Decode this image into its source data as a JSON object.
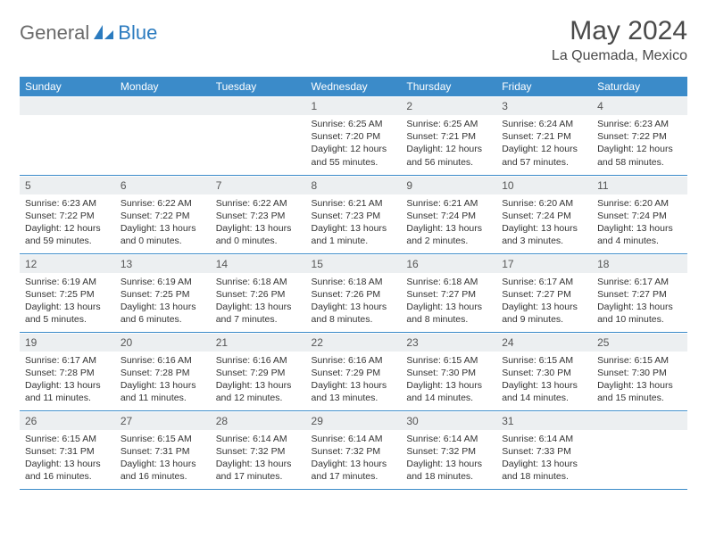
{
  "logo": {
    "part1": "General",
    "part2": "Blue"
  },
  "title": "May 2024",
  "location": "La Quemada, Mexico",
  "colors": {
    "header_bg": "#3b8bc9",
    "header_text": "#ffffff",
    "daynum_bg": "#eceff1",
    "border": "#3b8bc9",
    "logo_gray": "#6a6a6a",
    "logo_blue": "#2b7bbf"
  },
  "weekdays": [
    "Sunday",
    "Monday",
    "Tuesday",
    "Wednesday",
    "Thursday",
    "Friday",
    "Saturday"
  ],
  "weeks": [
    [
      {
        "empty": true
      },
      {
        "empty": true
      },
      {
        "empty": true
      },
      {
        "num": "1",
        "sunrise": "Sunrise: 6:25 AM",
        "sunset": "Sunset: 7:20 PM",
        "daylight": "Daylight: 12 hours and 55 minutes."
      },
      {
        "num": "2",
        "sunrise": "Sunrise: 6:25 AM",
        "sunset": "Sunset: 7:21 PM",
        "daylight": "Daylight: 12 hours and 56 minutes."
      },
      {
        "num": "3",
        "sunrise": "Sunrise: 6:24 AM",
        "sunset": "Sunset: 7:21 PM",
        "daylight": "Daylight: 12 hours and 57 minutes."
      },
      {
        "num": "4",
        "sunrise": "Sunrise: 6:23 AM",
        "sunset": "Sunset: 7:22 PM",
        "daylight": "Daylight: 12 hours and 58 minutes."
      }
    ],
    [
      {
        "num": "5",
        "sunrise": "Sunrise: 6:23 AM",
        "sunset": "Sunset: 7:22 PM",
        "daylight": "Daylight: 12 hours and 59 minutes."
      },
      {
        "num": "6",
        "sunrise": "Sunrise: 6:22 AM",
        "sunset": "Sunset: 7:22 PM",
        "daylight": "Daylight: 13 hours and 0 minutes."
      },
      {
        "num": "7",
        "sunrise": "Sunrise: 6:22 AM",
        "sunset": "Sunset: 7:23 PM",
        "daylight": "Daylight: 13 hours and 0 minutes."
      },
      {
        "num": "8",
        "sunrise": "Sunrise: 6:21 AM",
        "sunset": "Sunset: 7:23 PM",
        "daylight": "Daylight: 13 hours and 1 minute."
      },
      {
        "num": "9",
        "sunrise": "Sunrise: 6:21 AM",
        "sunset": "Sunset: 7:24 PM",
        "daylight": "Daylight: 13 hours and 2 minutes."
      },
      {
        "num": "10",
        "sunrise": "Sunrise: 6:20 AM",
        "sunset": "Sunset: 7:24 PM",
        "daylight": "Daylight: 13 hours and 3 minutes."
      },
      {
        "num": "11",
        "sunrise": "Sunrise: 6:20 AM",
        "sunset": "Sunset: 7:24 PM",
        "daylight": "Daylight: 13 hours and 4 minutes."
      }
    ],
    [
      {
        "num": "12",
        "sunrise": "Sunrise: 6:19 AM",
        "sunset": "Sunset: 7:25 PM",
        "daylight": "Daylight: 13 hours and 5 minutes."
      },
      {
        "num": "13",
        "sunrise": "Sunrise: 6:19 AM",
        "sunset": "Sunset: 7:25 PM",
        "daylight": "Daylight: 13 hours and 6 minutes."
      },
      {
        "num": "14",
        "sunrise": "Sunrise: 6:18 AM",
        "sunset": "Sunset: 7:26 PM",
        "daylight": "Daylight: 13 hours and 7 minutes."
      },
      {
        "num": "15",
        "sunrise": "Sunrise: 6:18 AM",
        "sunset": "Sunset: 7:26 PM",
        "daylight": "Daylight: 13 hours and 8 minutes."
      },
      {
        "num": "16",
        "sunrise": "Sunrise: 6:18 AM",
        "sunset": "Sunset: 7:27 PM",
        "daylight": "Daylight: 13 hours and 8 minutes."
      },
      {
        "num": "17",
        "sunrise": "Sunrise: 6:17 AM",
        "sunset": "Sunset: 7:27 PM",
        "daylight": "Daylight: 13 hours and 9 minutes."
      },
      {
        "num": "18",
        "sunrise": "Sunrise: 6:17 AM",
        "sunset": "Sunset: 7:27 PM",
        "daylight": "Daylight: 13 hours and 10 minutes."
      }
    ],
    [
      {
        "num": "19",
        "sunrise": "Sunrise: 6:17 AM",
        "sunset": "Sunset: 7:28 PM",
        "daylight": "Daylight: 13 hours and 11 minutes."
      },
      {
        "num": "20",
        "sunrise": "Sunrise: 6:16 AM",
        "sunset": "Sunset: 7:28 PM",
        "daylight": "Daylight: 13 hours and 11 minutes."
      },
      {
        "num": "21",
        "sunrise": "Sunrise: 6:16 AM",
        "sunset": "Sunset: 7:29 PM",
        "daylight": "Daylight: 13 hours and 12 minutes."
      },
      {
        "num": "22",
        "sunrise": "Sunrise: 6:16 AM",
        "sunset": "Sunset: 7:29 PM",
        "daylight": "Daylight: 13 hours and 13 minutes."
      },
      {
        "num": "23",
        "sunrise": "Sunrise: 6:15 AM",
        "sunset": "Sunset: 7:30 PM",
        "daylight": "Daylight: 13 hours and 14 minutes."
      },
      {
        "num": "24",
        "sunrise": "Sunrise: 6:15 AM",
        "sunset": "Sunset: 7:30 PM",
        "daylight": "Daylight: 13 hours and 14 minutes."
      },
      {
        "num": "25",
        "sunrise": "Sunrise: 6:15 AM",
        "sunset": "Sunset: 7:30 PM",
        "daylight": "Daylight: 13 hours and 15 minutes."
      }
    ],
    [
      {
        "num": "26",
        "sunrise": "Sunrise: 6:15 AM",
        "sunset": "Sunset: 7:31 PM",
        "daylight": "Daylight: 13 hours and 16 minutes."
      },
      {
        "num": "27",
        "sunrise": "Sunrise: 6:15 AM",
        "sunset": "Sunset: 7:31 PM",
        "daylight": "Daylight: 13 hours and 16 minutes."
      },
      {
        "num": "28",
        "sunrise": "Sunrise: 6:14 AM",
        "sunset": "Sunset: 7:32 PM",
        "daylight": "Daylight: 13 hours and 17 minutes."
      },
      {
        "num": "29",
        "sunrise": "Sunrise: 6:14 AM",
        "sunset": "Sunset: 7:32 PM",
        "daylight": "Daylight: 13 hours and 17 minutes."
      },
      {
        "num": "30",
        "sunrise": "Sunrise: 6:14 AM",
        "sunset": "Sunset: 7:32 PM",
        "daylight": "Daylight: 13 hours and 18 minutes."
      },
      {
        "num": "31",
        "sunrise": "Sunrise: 6:14 AM",
        "sunset": "Sunset: 7:33 PM",
        "daylight": "Daylight: 13 hours and 18 minutes."
      },
      {
        "empty": true
      }
    ]
  ]
}
